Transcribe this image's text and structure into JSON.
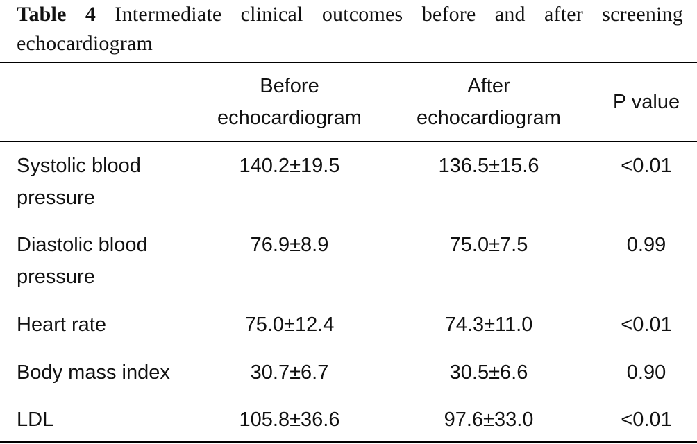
{
  "caption": {
    "label": "Table 4",
    "text": "Intermediate clinical outcomes before and after screening echocardiogram"
  },
  "table": {
    "headers": [
      "",
      "Before echocardiogram",
      "After echocardiogram",
      "P value"
    ],
    "header_lines": {
      "before": [
        "Before",
        "echocardiogram"
      ],
      "after": [
        "After",
        "echocardiogram"
      ],
      "p": "P value"
    },
    "rows": [
      {
        "label": "Systolic blood pressure",
        "label_lines": [
          "Systolic blood",
          "pressure"
        ],
        "before": "140.2±19.5",
        "after": "136.5±15.6",
        "p": "<0.01"
      },
      {
        "label": "Diastolic blood pressure",
        "label_lines": [
          "Diastolic blood",
          "pressure"
        ],
        "before": "76.9±8.9",
        "after": "75.0±7.5",
        "p": "0.99"
      },
      {
        "label": "Heart rate",
        "label_lines": [
          "Heart rate"
        ],
        "before": "75.0±12.4",
        "after": "74.3±11.0",
        "p": "<0.01"
      },
      {
        "label": "Body mass index",
        "label_lines": [
          "Body mass index"
        ],
        "before": "30.7±6.7",
        "after": "30.5±6.6",
        "p": "0.90"
      },
      {
        "label": "LDL",
        "label_lines": [
          "LDL"
        ],
        "before": "105.8±36.6",
        "after": "97.6±33.0",
        "p": "<0.01"
      }
    ]
  }
}
